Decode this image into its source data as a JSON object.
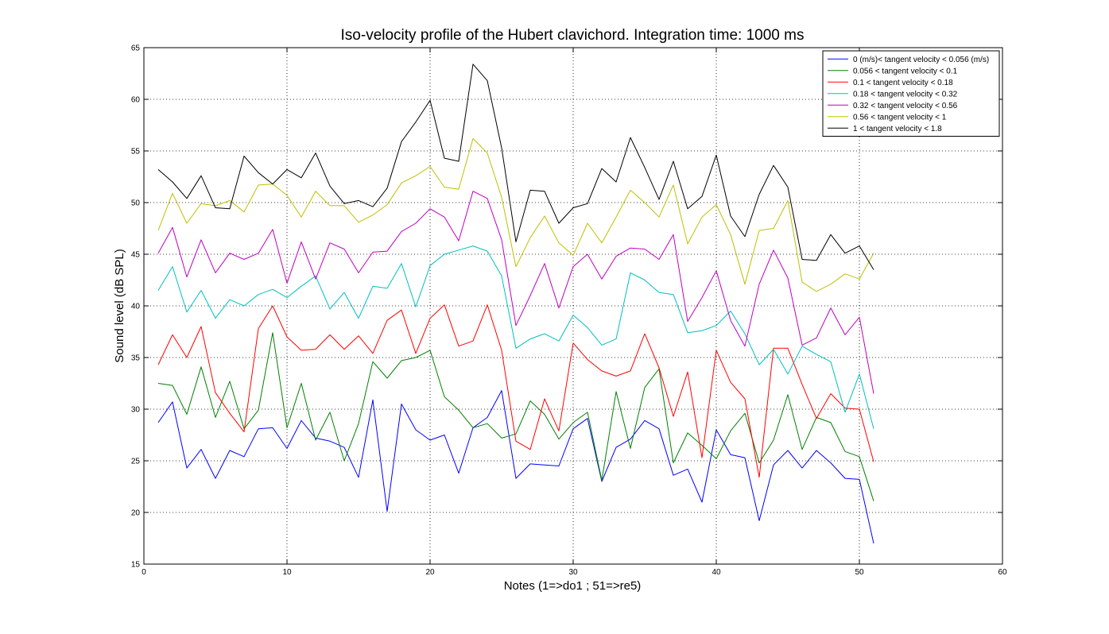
{
  "chart_data": {
    "type": "line",
    "title": "Iso-velocity profile of the Hubert clavichord. Integration time: 1000 ms",
    "xlabel": "Notes (1=>do1 ; 51=>re5)",
    "ylabel": "Sound level (dB SPL)",
    "xlim": [
      0,
      60
    ],
    "ylim": [
      15,
      65
    ],
    "xticks": [
      0,
      10,
      20,
      30,
      40,
      50,
      60
    ],
    "yticks": [
      15,
      20,
      25,
      30,
      35,
      40,
      45,
      50,
      55,
      60,
      65
    ],
    "grid": true,
    "legend_position": "top-right",
    "x": [
      1,
      2,
      3,
      4,
      5,
      6,
      7,
      8,
      9,
      10,
      11,
      12,
      13,
      14,
      15,
      16,
      17,
      18,
      19,
      20,
      21,
      22,
      23,
      24,
      25,
      26,
      27,
      28,
      29,
      30,
      31,
      32,
      33,
      34,
      35,
      36,
      37,
      38,
      39,
      40,
      41,
      42,
      43,
      44,
      45,
      46,
      47,
      48,
      49,
      50,
      51
    ],
    "series": [
      {
        "name": "0 (m/s)< tangent velocity < 0.056 (m/s)",
        "color": "#0000ff",
        "values": [
          28.7,
          30.7,
          24.3,
          26.1,
          23.3,
          26.0,
          25.4,
          28.1,
          28.2,
          26.2,
          28.9,
          27.2,
          26.9,
          26.3,
          23.4,
          30.9,
          20.1,
          30.5,
          28.0,
          27.0,
          27.5,
          23.8,
          28.2,
          29.2,
          31.8,
          23.3,
          24.7,
          24.6,
          24.5,
          28.1,
          29.1,
          23.0,
          26.3,
          27.1,
          28.9,
          28.1,
          23.6,
          24.2,
          21.0,
          28.0,
          25.6,
          25.3,
          19.2,
          24.6,
          26.0,
          24.3,
          26.0,
          24.8,
          23.3,
          23.2,
          17.0
        ]
      },
      {
        "name": "0.056 < tangent velocity < 0.1",
        "color": "#008000",
        "values": [
          32.5,
          32.3,
          29.5,
          34.1,
          29.2,
          32.7,
          28.1,
          29.9,
          37.4,
          28.2,
          32.5,
          27.0,
          29.7,
          25.0,
          28.6,
          34.6,
          33.0,
          34.7,
          35.0,
          35.7,
          31.2,
          29.9,
          28.2,
          28.6,
          27.2,
          27.6,
          30.8,
          29.5,
          27.1,
          28.7,
          29.7,
          23.1,
          31.7,
          26.2,
          32.1,
          33.9,
          24.8,
          27.7,
          26.5,
          25.2,
          27.9,
          29.6,
          24.8,
          27.0,
          31.4,
          26.1,
          29.2,
          28.7,
          25.9,
          25.4,
          21.1
        ]
      },
      {
        "name": "0.1 < tangent velocity < 0.18",
        "color": "#ff0000",
        "values": [
          34.3,
          37.2,
          35.0,
          38.0,
          31.6,
          29.6,
          27.8,
          37.8,
          40.0,
          37.0,
          35.7,
          35.8,
          37.2,
          35.8,
          37.1,
          35.4,
          38.6,
          39.6,
          35.4,
          38.8,
          40.1,
          36.1,
          36.6,
          40.1,
          35.7,
          26.9,
          26.1,
          31.0,
          27.9,
          36.4,
          34.8,
          33.7,
          33.2,
          33.7,
          37.3,
          34.0,
          29.3,
          33.6,
          25.3,
          35.7,
          32.6,
          31.0,
          23.4,
          35.9,
          35.9,
          32.4,
          29.1,
          31.5,
          30.1,
          30.0,
          24.9
        ]
      },
      {
        "name": "0.18 < tangent velocity < 0.32",
        "color": "#00bfbf",
        "values": [
          41.5,
          43.8,
          39.4,
          41.5,
          38.8,
          40.6,
          40.0,
          41.1,
          41.6,
          40.8,
          41.9,
          42.9,
          39.7,
          41.3,
          38.8,
          41.9,
          41.7,
          44.1,
          39.9,
          43.9,
          45.0,
          45.4,
          45.8,
          45.3,
          42.9,
          35.9,
          36.8,
          37.3,
          36.6,
          39.1,
          37.9,
          36.2,
          36.8,
          43.2,
          42.5,
          41.3,
          41.1,
          37.4,
          37.6,
          38.1,
          39.5,
          37.3,
          34.3,
          35.8,
          33.4,
          36.1,
          35.3,
          34.6,
          29.7,
          33.4,
          28.1
        ]
      },
      {
        "name": "0.32 < tangent velocity < 0.56",
        "color": "#bf00bf",
        "values": [
          45.1,
          47.6,
          42.8,
          46.4,
          43.2,
          45.1,
          44.5,
          45.1,
          47.4,
          42.2,
          46.2,
          42.6,
          46.1,
          45.5,
          43.2,
          45.2,
          45.3,
          47.2,
          48.0,
          49.4,
          48.6,
          46.3,
          51.1,
          50.4,
          46.4,
          38.1,
          41.0,
          44.1,
          39.8,
          43.8,
          45.0,
          42.6,
          44.8,
          45.6,
          45.5,
          44.5,
          46.9,
          38.5,
          40.8,
          43.4,
          38.6,
          36.1,
          42.1,
          45.4,
          42.7,
          36.2,
          36.9,
          39.8,
          37.2,
          38.9,
          31.5
        ]
      },
      {
        "name": "0.56 < tangent velocity < 1",
        "color": "#bfbf00",
        "values": [
          47.3,
          50.9,
          48.0,
          49.9,
          49.7,
          50.2,
          49.1,
          51.7,
          51.8,
          50.7,
          48.6,
          51.1,
          49.7,
          49.7,
          48.1,
          48.8,
          49.8,
          51.9,
          52.6,
          53.5,
          51.5,
          51.3,
          56.2,
          54.8,
          50.5,
          43.8,
          46.6,
          48.7,
          46.1,
          44.9,
          48.0,
          46.1,
          48.6,
          51.2,
          50.0,
          48.6,
          51.7,
          46.0,
          48.6,
          49.8,
          46.9,
          42.1,
          47.3,
          47.5,
          50.2,
          42.3,
          41.4,
          42.1,
          43.1,
          42.6,
          45.1
        ]
      },
      {
        "name": "1 < tangent velocity < 1.8",
        "color": "#000000",
        "values": [
          53.2,
          52.0,
          50.4,
          52.6,
          49.5,
          49.4,
          54.5,
          52.9,
          51.8,
          53.2,
          52.4,
          54.8,
          51.6,
          49.9,
          50.2,
          49.6,
          51.4,
          55.9,
          57.8,
          59.9,
          54.3,
          54.0,
          63.4,
          61.8,
          55.3,
          46.2,
          51.2,
          51.1,
          48.0,
          49.5,
          49.9,
          53.3,
          52.0,
          56.3,
          53.4,
          50.3,
          54.0,
          49.4,
          50.6,
          54.6,
          48.7,
          46.7,
          50.8,
          53.6,
          51.5,
          44.5,
          44.4,
          46.9,
          45.1,
          45.8,
          43.5
        ]
      }
    ]
  }
}
